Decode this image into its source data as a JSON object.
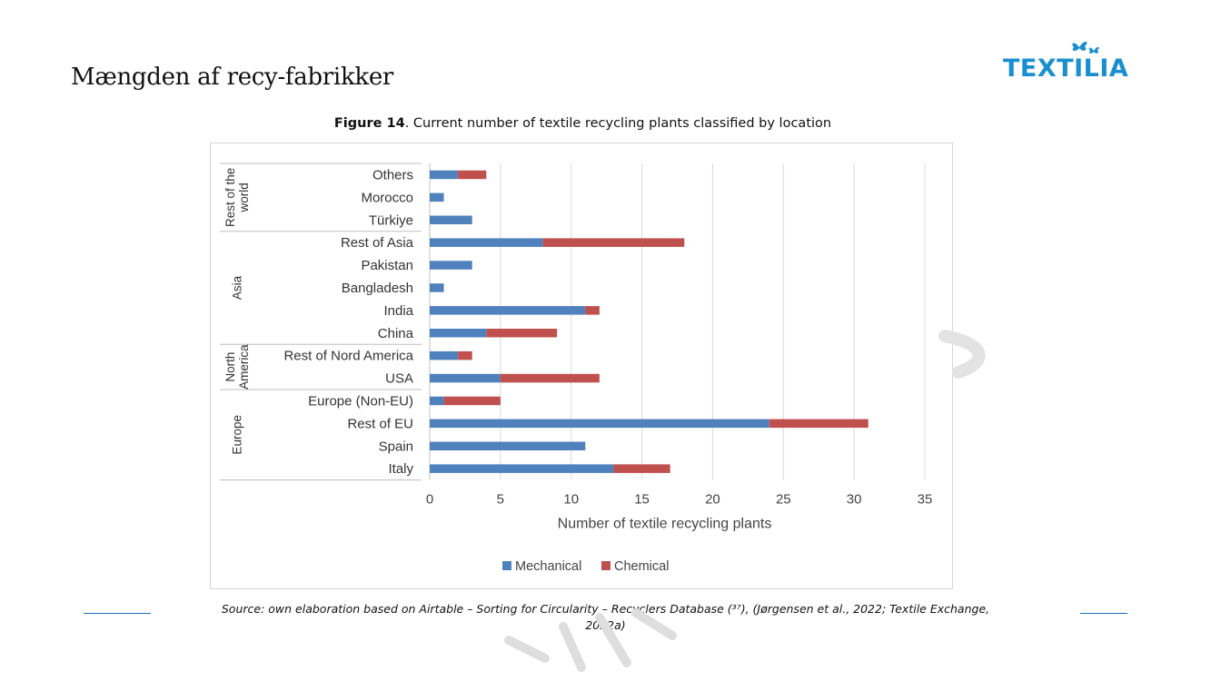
{
  "slide": {
    "title": "Mængden af recy-fabrikker",
    "logo_text": "TEXTILIA"
  },
  "figure": {
    "label": "Figure 14",
    "caption": ". Current number of textile recycling plants classified by location",
    "source_line1": "Source: own elaboration based on Airtable – Sorting for Circularity – Recyclers Database (³⁷), (Jørgensen et al., 2022; Textile Exchange,",
    "source_line2": "2022a)"
  },
  "colors": {
    "mechanical": "#4f81bd",
    "chemical": "#c0504d",
    "logo": "#1a8fd0",
    "rule": "#1a6fb5"
  },
  "chart_data": {
    "type": "bar",
    "orientation": "horizontal",
    "stacked": true,
    "title": "",
    "xlabel": "Number of textile recycling plants",
    "ylabel": "",
    "xlim": [
      0,
      35
    ],
    "xticks": [
      0,
      5,
      10,
      15,
      20,
      25,
      30,
      35
    ],
    "grid": true,
    "legend_position": "bottom",
    "groups": [
      {
        "name": "Rest of the world",
        "categories": [
          "Others",
          "Morocco",
          "Türkiye"
        ]
      },
      {
        "name": "Asia",
        "categories": [
          "Rest of Asia",
          "Pakistan",
          "Bangladesh",
          "India",
          "China"
        ]
      },
      {
        "name": "North America",
        "categories": [
          "Rest of Nord America",
          "USA"
        ]
      },
      {
        "name": "Europe",
        "categories": [
          "Europe (Non-EU)",
          "Rest of EU",
          "Spain",
          "Italy"
        ]
      }
    ],
    "categories": [
      "Others",
      "Morocco",
      "Türkiye",
      "Rest of Asia",
      "Pakistan",
      "Bangladesh",
      "India",
      "China",
      "Rest of Nord America",
      "USA",
      "Europe (Non-EU)",
      "Rest of EU",
      "Spain",
      "Italy"
    ],
    "series": [
      {
        "name": "Mechanical",
        "values": [
          2,
          1,
          3,
          8,
          3,
          1,
          11,
          4,
          2,
          5,
          1,
          24,
          11,
          13
        ]
      },
      {
        "name": "Chemical",
        "values": [
          2,
          0,
          0,
          10,
          0,
          0,
          1,
          5,
          1,
          7,
          4,
          7,
          0,
          4
        ]
      }
    ]
  }
}
